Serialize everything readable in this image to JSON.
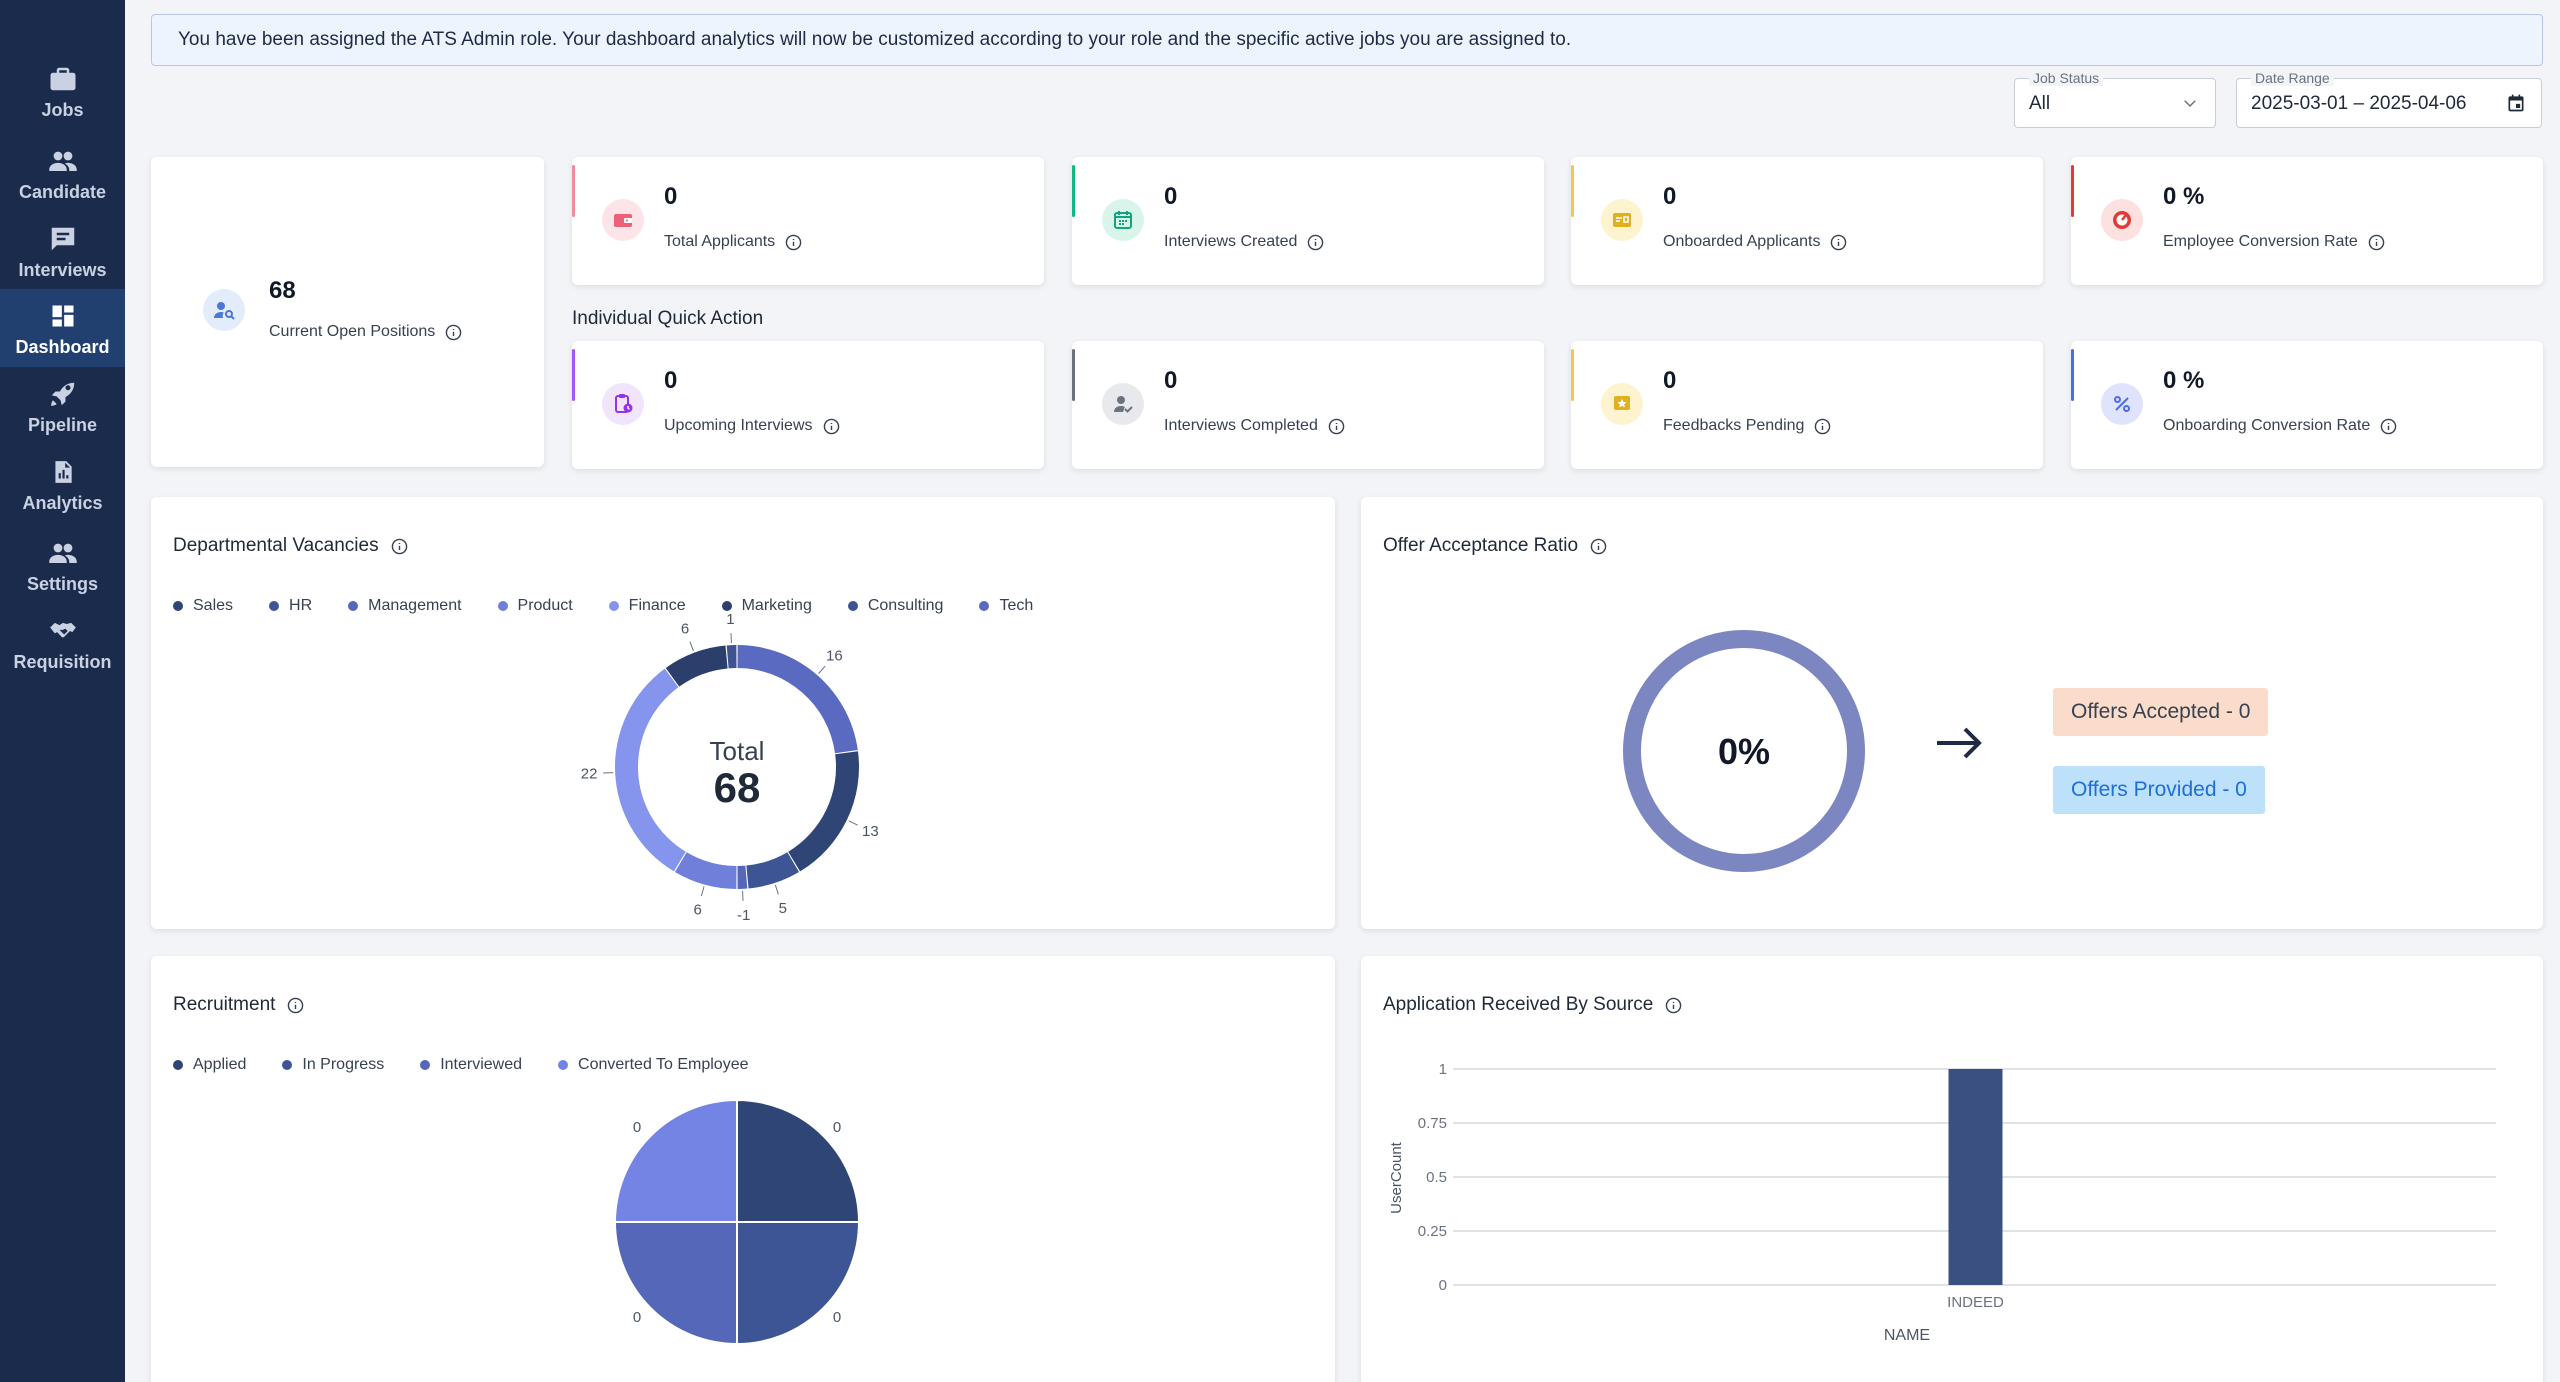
{
  "sidebar": {
    "items": [
      {
        "label": "Jobs",
        "icon": "briefcase-icon"
      },
      {
        "label": "Candidate",
        "icon": "people-icon"
      },
      {
        "label": "Interviews",
        "icon": "chat-icon"
      },
      {
        "label": "Dashboard",
        "icon": "dashboard-icon",
        "active": true
      },
      {
        "label": "Pipeline",
        "icon": "rocket-icon"
      },
      {
        "label": "Analytics",
        "icon": "report-icon"
      },
      {
        "label": "Settings",
        "icon": "people-icon"
      },
      {
        "label": "Requisition",
        "icon": "handshake-icon"
      }
    ]
  },
  "banner": {
    "text": "You have been assigned the ATS Admin role. Your dashboard analytics will now be customized according to your role and the specific active jobs you are assigned to."
  },
  "filters": {
    "job_status": {
      "label": "Job Status",
      "value": "All"
    },
    "date_range": {
      "label": "Date Range",
      "value": "2025-03-01 – 2025-04-06"
    }
  },
  "open_positions": {
    "value": "68",
    "label": "Current Open Positions"
  },
  "stats": [
    {
      "value": "0",
      "label": "Total Applicants",
      "accent": "#f28b9b",
      "circle_bg": "#fde4e8",
      "icon_color": "#ee5f7a",
      "icon": "wallet-icon"
    },
    {
      "value": "0",
      "label": "Interviews Created",
      "accent": "#10b981",
      "circle_bg": "#d9f5ea",
      "icon_color": "#14a37f",
      "icon": "calendar-icon"
    },
    {
      "value": "0",
      "label": "Onboarded Applicants",
      "accent": "#f3c74b",
      "circle_bg": "#fdf3cf",
      "icon_color": "#e0b021",
      "icon": "id-card-icon"
    },
    {
      "value": "0 %",
      "label": "Employee Conversion Rate",
      "accent": "#e53935",
      "circle_bg": "#fde0e0",
      "icon_color": "#e53935",
      "icon": "gauge-icon"
    }
  ],
  "quick_action_title": "Individual Quick Action",
  "quick_actions": [
    {
      "value": "0",
      "label": "Upcoming Interviews",
      "accent": "#a855f7",
      "circle_bg": "#f1e4fd",
      "icon_color": "#9333ea",
      "icon": "clipboard-clock-icon"
    },
    {
      "value": "0",
      "label": "Interviews Completed",
      "accent": "#6b7280",
      "circle_bg": "#e8e9ec",
      "icon_color": "#6b7280",
      "icon": "user-check-icon"
    },
    {
      "value": "0",
      "label": "Feedbacks Pending",
      "accent": "#f3c74b",
      "circle_bg": "#fdf3cf",
      "icon_color": "#e0b021",
      "icon": "feedback-icon"
    },
    {
      "value": "0 %",
      "label": "Onboarding Conversion Rate",
      "accent": "#4f6be8",
      "circle_bg": "#dfe3fb",
      "icon_color": "#4f6be8",
      "icon": "percent-icon"
    }
  ],
  "departmental": {
    "title": "Departmental Vacancies",
    "center_label": "Total",
    "total": "68",
    "legend": [
      {
        "name": "Sales",
        "color": "#2f4575"
      },
      {
        "name": "HR",
        "color": "#3d5495"
      },
      {
        "name": "Management",
        "color": "#5567b8"
      },
      {
        "name": "Product",
        "color": "#6f7fdb"
      },
      {
        "name": "Finance",
        "color": "#8595ee"
      },
      {
        "name": "Marketing",
        "color": "#2c3f6c"
      },
      {
        "name": "Consulting",
        "color": "#3f5393"
      },
      {
        "name": "Tech",
        "color": "#5a6ac0"
      }
    ]
  },
  "offer": {
    "title": "Offer Acceptance Ratio",
    "percent": "0%",
    "accepted": "Offers Accepted - 0",
    "provided": "Offers Provided - 0",
    "ring_color": "#7c86c0"
  },
  "recruitment": {
    "title": "Recruitment",
    "legend": [
      {
        "name": "Applied",
        "color": "#2f4575"
      },
      {
        "name": "In Progress",
        "color": "#3d5495"
      },
      {
        "name": "Interviewed",
        "color": "#5567b8"
      },
      {
        "name": "Converted To Employee",
        "color": "#7384e4"
      }
    ],
    "slice_labels": [
      "0",
      "0",
      "0",
      "0"
    ]
  },
  "source": {
    "title": "Application Received By Source",
    "xlabel": "NAME",
    "ylabel": "UserCount",
    "bar_color": "#3a5080"
  },
  "chart_data": [
    {
      "type": "pie",
      "title": "Departmental Vacancies",
      "categories": [
        "Tech",
        "Sales",
        "HR",
        "Management",
        "Product",
        "Finance",
        "Marketing",
        "Consulting"
      ],
      "values": [
        16,
        13,
        5,
        -1,
        6,
        22,
        6,
        1
      ],
      "total": 68
    },
    {
      "type": "pie",
      "title": "Recruitment",
      "categories": [
        "Applied",
        "In Progress",
        "Interviewed",
        "Converted To Employee"
      ],
      "values": [
        0,
        0,
        0,
        0
      ]
    },
    {
      "type": "bar",
      "title": "Application Received By Source",
      "categories": [
        "INDEED"
      ],
      "values": [
        1
      ],
      "xlabel": "NAME",
      "ylabel": "UserCount",
      "ylim": [
        0,
        1
      ],
      "yticks": [
        "0",
        "0.25",
        "0.5",
        "0.75",
        "1"
      ]
    }
  ]
}
